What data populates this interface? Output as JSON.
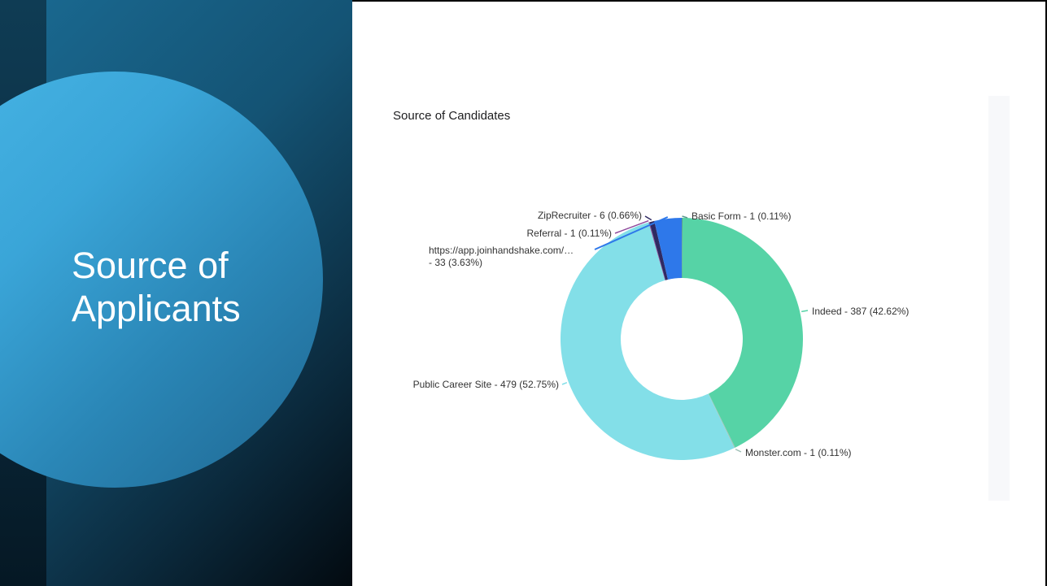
{
  "slide": {
    "title_line1": "Source of",
    "title_line2": "Applicants"
  },
  "chart_data": {
    "type": "pie",
    "title": "Source of Candidates",
    "donut": true,
    "slices": [
      {
        "name": "Basic Form",
        "value": 1,
        "percent": 0.11,
        "label": "Basic Form - 1 (0.11%)",
        "color": "#5a9a8e"
      },
      {
        "name": "Indeed",
        "value": 387,
        "percent": 42.62,
        "label": "Indeed - 387 (42.62%)",
        "color": "#56d3a6"
      },
      {
        "name": "Monster.com",
        "value": 1,
        "percent": 0.11,
        "label": "Monster.com - 1 (0.11%)",
        "color": "#9ebfb5"
      },
      {
        "name": "Public Career Site",
        "value": 479,
        "percent": 52.75,
        "label": "Public Career Site - 479 (52.75%)",
        "color": "#83dfe8"
      },
      {
        "name": "Referral",
        "value": 1,
        "percent": 0.11,
        "label": "Referral - 1 (0.11%)",
        "color": "#8f4a9c"
      },
      {
        "name": "ZipRecruiter",
        "value": 6,
        "percent": 0.66,
        "label": "ZipRecruiter - 6 (0.66%)",
        "color": "#2f2a62"
      },
      {
        "name": "https://app.joinhandshake.com/...",
        "value": 33,
        "percent": 3.63,
        "label_line1": "https://app.joinhandshake.com/…",
        "label_line2": "- 33 (3.63%)",
        "color": "#2e78ea"
      }
    ]
  }
}
